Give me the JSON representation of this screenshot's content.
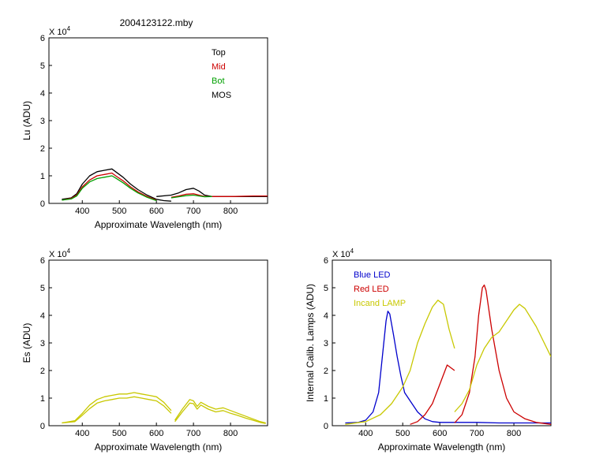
{
  "figure_title": "2004123122.mby",
  "chart_data": [
    {
      "type": "line",
      "id": "lu",
      "ylabel": "Lu (ADU)",
      "xlabel": "Approximate Wavelength (nm)",
      "scale_label": "X 10",
      "scale_exp": "4",
      "xlim": [
        310,
        900
      ],
      "ylim": [
        0,
        6
      ],
      "xticks": [
        "400",
        "500",
        "600",
        "700",
        "800"
      ],
      "yticks": [
        "0",
        "1",
        "2",
        "3",
        "4",
        "5",
        "6"
      ],
      "legend": [
        "Top",
        "Mid",
        "Bot",
        "MOS"
      ],
      "series": [
        {
          "name": "Top",
          "color": "#000000",
          "points": [
            [
              345,
              0.15
            ],
            [
              370,
              0.2
            ],
            [
              385,
              0.35
            ],
            [
              400,
              0.7
            ],
            [
              420,
              1.0
            ],
            [
              440,
              1.15
            ],
            [
              460,
              1.2
            ],
            [
              480,
              1.25
            ],
            [
              490,
              1.15
            ],
            [
              510,
              0.95
            ],
            [
              530,
              0.7
            ],
            [
              550,
              0.5
            ],
            [
              575,
              0.3
            ],
            [
              600,
              0.15
            ],
            [
              620,
              0.1
            ],
            [
              640,
              0.08
            ]
          ]
        },
        {
          "name": "Top",
          "color": "#000000",
          "points": [
            [
              600,
              0.25
            ],
            [
              640,
              0.3
            ],
            [
              660,
              0.38
            ],
            [
              680,
              0.5
            ],
            [
              700,
              0.55
            ],
            [
              715,
              0.45
            ],
            [
              730,
              0.3
            ],
            [
              750,
              0.25
            ],
            [
              800,
              0.25
            ],
            [
              900,
              0.25
            ]
          ]
        },
        {
          "name": "Mid",
          "color": "#cc0000",
          "points": [
            [
              345,
              0.12
            ],
            [
              370,
              0.18
            ],
            [
              385,
              0.3
            ],
            [
              400,
              0.6
            ],
            [
              420,
              0.85
            ],
            [
              440,
              1.0
            ],
            [
              460,
              1.05
            ],
            [
              480,
              1.1
            ],
            [
              490,
              1.0
            ],
            [
              510,
              0.82
            ],
            [
              530,
              0.6
            ],
            [
              550,
              0.42
            ],
            [
              575,
              0.25
            ],
            [
              600,
              0.12
            ]
          ]
        },
        {
          "name": "Mid",
          "color": "#cc0000",
          "points": [
            [
              640,
              0.22
            ],
            [
              660,
              0.27
            ],
            [
              680,
              0.33
            ],
            [
              700,
              0.35
            ],
            [
              715,
              0.3
            ],
            [
              730,
              0.25
            ],
            [
              750,
              0.25
            ],
            [
              800,
              0.25
            ],
            [
              860,
              0.27
            ],
            [
              900,
              0.27
            ]
          ]
        },
        {
          "name": "Bot",
          "color": "#00a000",
          "points": [
            [
              345,
              0.12
            ],
            [
              370,
              0.16
            ],
            [
              385,
              0.27
            ],
            [
              400,
              0.55
            ],
            [
              420,
              0.78
            ],
            [
              440,
              0.9
            ],
            [
              460,
              0.95
            ],
            [
              480,
              1.0
            ],
            [
              490,
              0.92
            ],
            [
              510,
              0.75
            ],
            [
              530,
              0.55
            ],
            [
              550,
              0.38
            ],
            [
              575,
              0.22
            ],
            [
              600,
              0.1
            ]
          ]
        },
        {
          "name": "Bot",
          "color": "#00a000",
          "points": [
            [
              640,
              0.2
            ],
            [
              660,
              0.24
            ],
            [
              680,
              0.28
            ],
            [
              700,
              0.3
            ],
            [
              715,
              0.27
            ],
            [
              730,
              0.24
            ],
            [
              750,
              0.25
            ]
          ]
        }
      ]
    },
    {
      "type": "line",
      "id": "es",
      "ylabel": "Es (ADU)",
      "xlabel": "Approximate Wavelength (nm)",
      "scale_label": "X 10",
      "scale_exp": "4",
      "xlim": [
        310,
        900
      ],
      "ylim": [
        0,
        6
      ],
      "xticks": [
        "400",
        "500",
        "600",
        "700",
        "800"
      ],
      "yticks": [
        "0",
        "1",
        "2",
        "3",
        "4",
        "5",
        "6"
      ],
      "series": [
        {
          "name": "Es",
          "color": "#c8c800",
          "points": [
            [
              345,
              0.1
            ],
            [
              380,
              0.18
            ],
            [
              400,
              0.45
            ],
            [
              420,
              0.75
            ],
            [
              440,
              0.95
            ],
            [
              460,
              1.05
            ],
            [
              480,
              1.1
            ],
            [
              500,
              1.15
            ],
            [
              520,
              1.15
            ],
            [
              540,
              1.2
            ],
            [
              560,
              1.15
            ],
            [
              580,
              1.1
            ],
            [
              600,
              1.05
            ],
            [
              620,
              0.85
            ],
            [
              640,
              0.55
            ]
          ]
        },
        {
          "name": "Es",
          "color": "#c8c800",
          "points": [
            [
              345,
              0.1
            ],
            [
              380,
              0.15
            ],
            [
              400,
              0.38
            ],
            [
              420,
              0.62
            ],
            [
              440,
              0.82
            ],
            [
              460,
              0.9
            ],
            [
              480,
              0.95
            ],
            [
              500,
              1.0
            ],
            [
              520,
              1.0
            ],
            [
              540,
              1.05
            ],
            [
              560,
              1.0
            ],
            [
              580,
              0.95
            ],
            [
              600,
              0.9
            ],
            [
              620,
              0.72
            ],
            [
              640,
              0.45
            ]
          ]
        },
        {
          "name": "Es",
          "color": "#c8c800",
          "points": [
            [
              650,
              0.2
            ],
            [
              670,
              0.6
            ],
            [
              690,
              0.95
            ],
            [
              700,
              0.9
            ],
            [
              710,
              0.7
            ],
            [
              720,
              0.85
            ],
            [
              740,
              0.7
            ],
            [
              760,
              0.6
            ],
            [
              780,
              0.65
            ],
            [
              800,
              0.55
            ],
            [
              820,
              0.45
            ],
            [
              840,
              0.35
            ],
            [
              860,
              0.25
            ],
            [
              880,
              0.15
            ],
            [
              895,
              0.1
            ]
          ]
        },
        {
          "name": "Es",
          "color": "#c8c800",
          "points": [
            [
              650,
              0.15
            ],
            [
              670,
              0.5
            ],
            [
              690,
              0.82
            ],
            [
              700,
              0.8
            ],
            [
              710,
              0.6
            ],
            [
              720,
              0.75
            ],
            [
              740,
              0.6
            ],
            [
              760,
              0.5
            ],
            [
              780,
              0.55
            ],
            [
              800,
              0.45
            ],
            [
              820,
              0.37
            ],
            [
              840,
              0.28
            ],
            [
              860,
              0.2
            ],
            [
              880,
              0.12
            ],
            [
              895,
              0.08
            ]
          ]
        }
      ]
    },
    {
      "type": "line",
      "id": "lamps",
      "ylabel": "Internal Calib. Lamps (ADU)",
      "xlabel": "Approximate Wavelength (nm)",
      "scale_label": "X 10",
      "scale_exp": "4",
      "xlim": [
        310,
        900
      ],
      "ylim": [
        0,
        6
      ],
      "xticks": [
        "400",
        "500",
        "600",
        "700",
        "800"
      ],
      "yticks": [
        "0",
        "1",
        "2",
        "3",
        "4",
        "5",
        "6"
      ],
      "legend": [
        "Blue LED",
        "Red LED",
        "Incand LAMP"
      ],
      "series": [
        {
          "name": "Blue LED",
          "color": "#0000cc",
          "points": [
            [
              345,
              0.1
            ],
            [
              380,
              0.12
            ],
            [
              400,
              0.2
            ],
            [
              420,
              0.5
            ],
            [
              435,
              1.2
            ],
            [
              445,
              2.5
            ],
            [
              455,
              3.8
            ],
            [
              460,
              4.15
            ],
            [
              465,
              4.05
            ],
            [
              475,
              3.3
            ],
            [
              485,
              2.5
            ],
            [
              495,
              1.8
            ],
            [
              505,
              1.2
            ],
            [
              520,
              0.9
            ],
            [
              540,
              0.5
            ],
            [
              560,
              0.25
            ],
            [
              580,
              0.15
            ],
            [
              600,
              0.12
            ],
            [
              640,
              0.12
            ],
            [
              700,
              0.12
            ],
            [
              760,
              0.1
            ],
            [
              800,
              0.1
            ],
            [
              850,
              0.1
            ],
            [
              900,
              0.1
            ]
          ]
        },
        {
          "name": "Red LED",
          "color": "#cc0000",
          "points": [
            [
              520,
              0.05
            ],
            [
              540,
              0.15
            ],
            [
              560,
              0.4
            ],
            [
              580,
              0.8
            ],
            [
              600,
              1.5
            ],
            [
              620,
              2.2
            ],
            [
              640,
              2.0
            ]
          ]
        },
        {
          "name": "Red LED",
          "color": "#cc0000",
          "points": [
            [
              640,
              0.1
            ],
            [
              660,
              0.4
            ],
            [
              680,
              1.2
            ],
            [
              695,
              2.5
            ],
            [
              705,
              4.0
            ],
            [
              715,
              5.0
            ],
            [
              720,
              5.1
            ],
            [
              725,
              4.9
            ],
            [
              740,
              3.5
            ],
            [
              760,
              2.0
            ],
            [
              780,
              1.0
            ],
            [
              800,
              0.5
            ],
            [
              830,
              0.25
            ],
            [
              860,
              0.12
            ],
            [
              900,
              0.05
            ]
          ]
        },
        {
          "name": "Incand LAMP",
          "color": "#c8c800",
          "points": [
            [
              345,
              0.05
            ],
            [
              400,
              0.15
            ],
            [
              440,
              0.4
            ],
            [
              470,
              0.8
            ],
            [
              500,
              1.4
            ],
            [
              520,
              2.0
            ],
            [
              540,
              3.0
            ],
            [
              560,
              3.7
            ],
            [
              580,
              4.3
            ],
            [
              595,
              4.55
            ],
            [
              610,
              4.4
            ],
            [
              625,
              3.5
            ],
            [
              640,
              2.8
            ]
          ]
        },
        {
          "name": "Incand LAMP",
          "color": "#c8c800",
          "points": [
            [
              640,
              0.5
            ],
            [
              660,
              0.8
            ],
            [
              680,
              1.3
            ],
            [
              700,
              2.2
            ],
            [
              720,
              2.8
            ],
            [
              740,
              3.2
            ],
            [
              760,
              3.4
            ],
            [
              780,
              3.8
            ],
            [
              800,
              4.2
            ],
            [
              815,
              4.4
            ],
            [
              830,
              4.25
            ],
            [
              860,
              3.6
            ],
            [
              900,
              2.5
            ]
          ]
        }
      ]
    }
  ]
}
